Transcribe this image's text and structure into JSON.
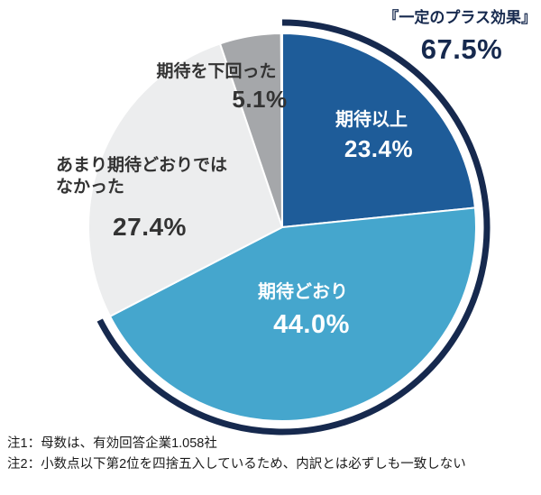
{
  "chart_data": {
    "type": "pie",
    "start_angle_deg": 0,
    "direction": "clockwise",
    "background": "#ffffff",
    "slices": [
      {
        "label": "期待以上",
        "value": 23.4,
        "value_text": "23.4%",
        "color": "#1e5c99",
        "text_color": "#ffffff"
      },
      {
        "label": "期待どおり",
        "value": 44.0,
        "value_text": "44.0%",
        "color": "#45a6cd",
        "text_color": "#ffffff"
      },
      {
        "label": "あまり期待どおりでは\nなかった",
        "value": 27.4,
        "value_text": "27.4%",
        "color": "#ecedee",
        "text_color": "#333333"
      },
      {
        "label": "期待を下回った",
        "value": 5.1,
        "value_text": "5.1%",
        "color": "#a5a7aa",
        "text_color": "#333333"
      }
    ],
    "highlight": {
      "label": "『一定のプラス効果』",
      "value": 67.5,
      "value_text": "67.5%",
      "covers": [
        "期待以上",
        "期待どおり"
      ],
      "color": "#16294e"
    }
  },
  "notes": [
    "注1：母数は、有効回答企業1.058社",
    "注2：小数点以下第2位を四捨五入しているため、内訳とは必ずしも一致しない"
  ]
}
